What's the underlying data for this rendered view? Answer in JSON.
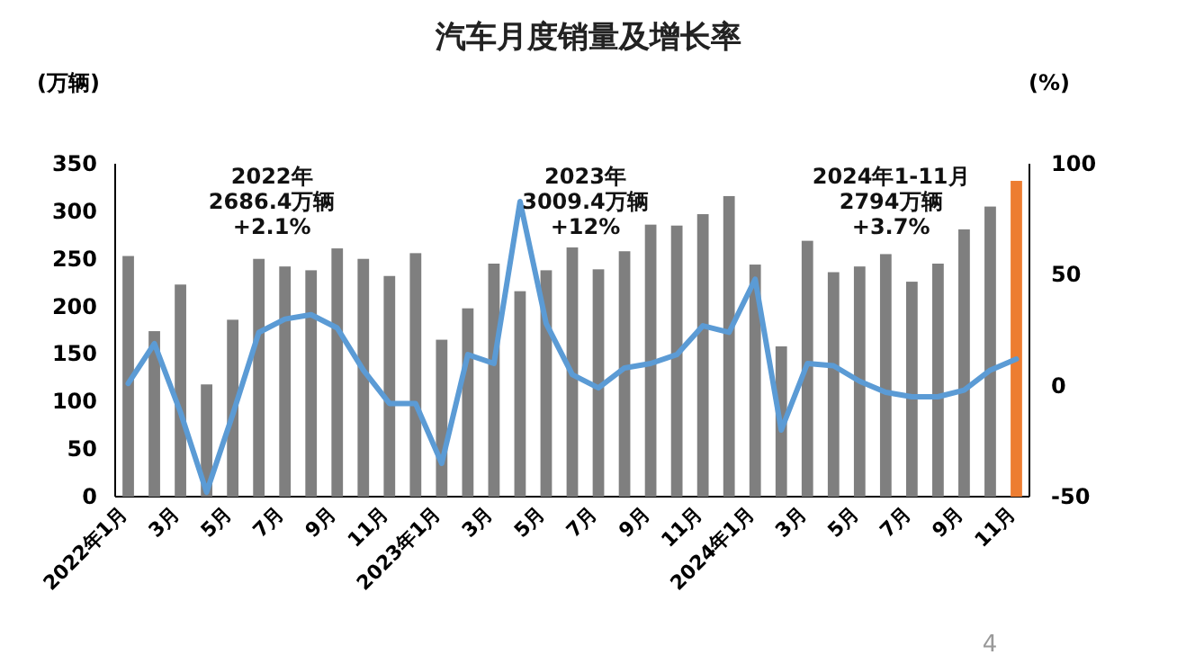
{
  "chart_data": {
    "type": "bar",
    "title": "汽车月度销量及增长率",
    "ylabel": "(万辆)",
    "y2label": "(%)",
    "categories": [
      "2022年1月",
      null,
      "3月",
      null,
      "5月",
      null,
      "7月",
      null,
      "9月",
      null,
      "11月",
      null,
      "2023年1月",
      null,
      "3月",
      null,
      "5月",
      null,
      "7月",
      null,
      "9月",
      null,
      "11月",
      null,
      "2024年1月",
      null,
      "3月",
      null,
      "5月",
      null,
      "7月",
      null,
      "9月",
      null,
      "11月"
    ],
    "series": [
      {
        "colors": [
          "#7f7f7f",
          "#7f7f7f",
          "#7f7f7f",
          "#7f7f7f",
          "#7f7f7f",
          "#7f7f7f",
          "#7f7f7f",
          "#7f7f7f",
          "#7f7f7f",
          "#7f7f7f",
          "#7f7f7f",
          "#7f7f7f",
          "#7f7f7f",
          "#7f7f7f",
          "#7f7f7f",
          "#7f7f7f",
          "#7f7f7f",
          "#7f7f7f",
          "#7f7f7f",
          "#7f7f7f",
          "#7f7f7f",
          "#7f7f7f",
          "#7f7f7f",
          "#7f7f7f",
          "#7f7f7f",
          "#7f7f7f",
          "#7f7f7f",
          "#7f7f7f",
          "#7f7f7f",
          "#7f7f7f",
          "#7f7f7f",
          "#7f7f7f",
          "#7f7f7f",
          "#7f7f7f",
          "#ed7d31"
        ],
        "values": [
          253,
          174,
          223,
          118,
          186,
          250,
          242,
          238,
          261,
          250,
          232,
          256,
          165,
          198,
          245,
          216,
          238,
          262,
          239,
          258,
          286,
          285,
          297,
          316,
          244,
          158,
          269,
          236,
          242,
          255,
          226,
          245,
          281,
          305,
          332
        ]
      },
      {
        "type": "line",
        "axis": "y2",
        "color": "#5b9bd5",
        "values": [
          1,
          19,
          -12,
          -48,
          -13,
          24,
          30,
          32,
          26,
          7,
          -8,
          -8,
          -35,
          14,
          10,
          83,
          28,
          5,
          -1,
          8,
          10,
          14,
          27,
          24,
          48,
          -20,
          10,
          9,
          2,
          -3,
          -5,
          -5,
          -2,
          7,
          12
        ]
      }
    ],
    "ylim": [
      0,
      350
    ],
    "yticks": [
      0,
      50,
      100,
      150,
      200,
      250,
      300,
      350
    ],
    "y2lim": [
      -50,
      100
    ],
    "y2ticks": [
      -50,
      0,
      50,
      100
    ],
    "grid": false,
    "annotations": [
      "2022年\n2686.4万辆\n+2.1%",
      "2023年\n3009.4万辆\n+12%",
      "2024年1-11月\n2794万辆\n+3.7%",
      "4"
    ]
  }
}
